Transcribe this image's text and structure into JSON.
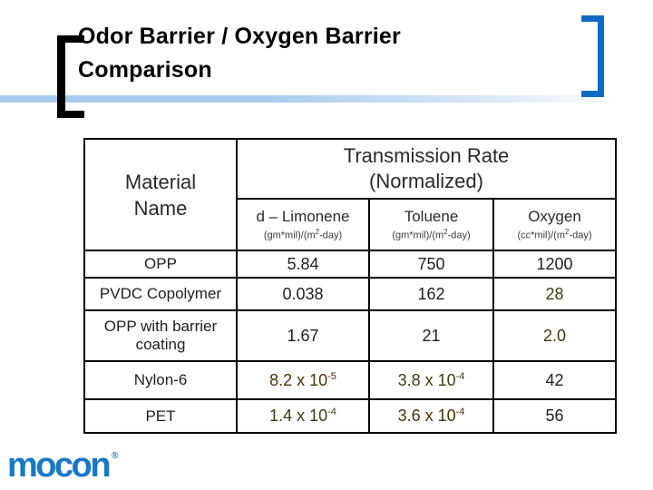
{
  "slide": {
    "title_line1": "Odor Barrier / Oxygen Barrier",
    "title_line2": "Comparison"
  },
  "logo": {
    "text": "mocon",
    "mark": "®"
  },
  "colors": {
    "accent_blue_line": "#a9caee",
    "bracket_blue": "#0e6bc4",
    "logo_blue": "#1778c4",
    "highlight_gold": "#d7a300",
    "highlight_olive": "#a29f41",
    "gold_text": "#4b3206",
    "olive_text": "#3e3b13"
  },
  "table": {
    "corner_header_line1": "Material",
    "corner_header_line2": "Name",
    "group_header_line1": "Transmission Rate",
    "group_header_line2": "(Normalized)",
    "columns": [
      {
        "label": "d – Limonene",
        "unit_base": "(gm*mil)/(m",
        "unit_sup": "2",
        "unit_rest": "-day)"
      },
      {
        "label": "Toluene",
        "unit_base": "(gm*mil)/(m",
        "unit_sup": "2",
        "unit_rest": "-day)"
      },
      {
        "label": "Oxygen",
        "unit_base": "(cc*mil)/(m",
        "unit_sup": "2",
        "unit_rest": "-day)"
      }
    ],
    "rows": [
      {
        "material": "OPP",
        "limonene": {
          "base": "5.84"
        },
        "toluene": {
          "base": "750"
        },
        "oxygen": {
          "base": "1200"
        }
      },
      {
        "material": "PVDC Copolymer",
        "limonene": {
          "base": "0.038"
        },
        "toluene": {
          "base": "162"
        },
        "oxygen": {
          "base": "28",
          "highlight": "olive"
        }
      },
      {
        "material": "OPP with barrier coating",
        "limonene": {
          "base": "1.67"
        },
        "toluene": {
          "base": "21"
        },
        "oxygen": {
          "base": "2.0",
          "highlight": "gold"
        }
      },
      {
        "material": "Nylon-6",
        "limonene": {
          "base": "8.2 x 10",
          "sup": "-5",
          "highlight": "gold"
        },
        "toluene": {
          "base": "3.8 x 10",
          "sup": "-4",
          "highlight": "olive"
        },
        "oxygen": {
          "base": "42"
        }
      },
      {
        "material": "PET",
        "limonene": {
          "base": "1.4 x 10",
          "sup": "-4",
          "highlight": "olive"
        },
        "toluene": {
          "base": "3.6 x 10",
          "sup": "-4",
          "highlight": "gold"
        },
        "oxygen": {
          "base": "56"
        }
      }
    ]
  }
}
